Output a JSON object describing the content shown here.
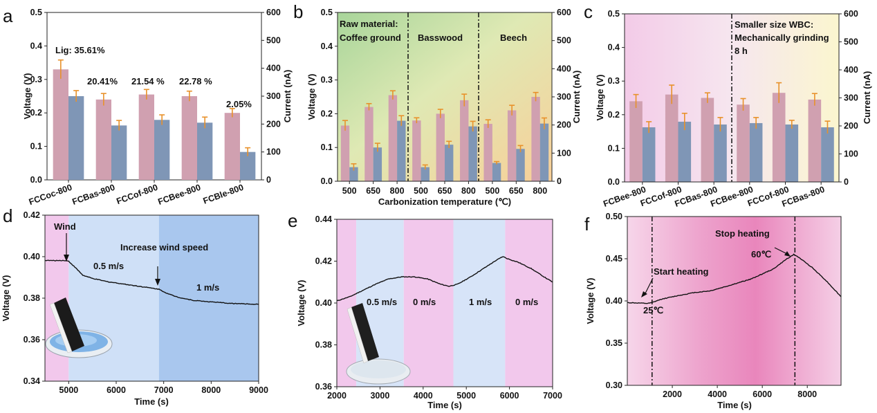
{
  "chart_data": [
    {
      "panel": "a",
      "type": "bar",
      "categories": [
        "FCCoc-800",
        "FCBas-800",
        "FCCof-800",
        "FCBee-800",
        "FCBle-800"
      ],
      "series": [
        {
          "name": "Voltage (V)",
          "axis": "left",
          "values": [
            0.33,
            0.24,
            0.255,
            0.25,
            0.2
          ],
          "errors": [
            0.028,
            0.018,
            0.015,
            0.015,
            0.013
          ],
          "color": "#d0a0b0"
        },
        {
          "name": "Current (nA)",
          "axis": "right",
          "values": [
            300,
            195,
            215,
            205,
            100
          ],
          "errors": [
            20,
            18,
            18,
            20,
            15
          ],
          "color": "#7f96b6"
        }
      ],
      "ylabel": "Voltage (V)",
      "y2label": "Current (nA)",
      "ylim": [
        0,
        0.5
      ],
      "y2lim": [
        0,
        600
      ],
      "yticks": [
        "0.0",
        "0.1",
        "0.2",
        "0.3",
        "0.4",
        "0.5"
      ],
      "y2ticks": [
        "0",
        "100",
        "200",
        "300",
        "400",
        "500",
        "600"
      ],
      "annotations": [
        "Lig: 35.61%",
        "20.41%",
        "21.54 %",
        "22.78 %",
        "2.05%"
      ]
    },
    {
      "panel": "b",
      "type": "bar",
      "categories": [
        "500",
        "650",
        "800",
        "500",
        "650",
        "800",
        "500",
        "650",
        "800"
      ],
      "series": [
        {
          "name": "Voltage (V)",
          "axis": "left",
          "values": [
            0.165,
            0.22,
            0.255,
            0.18,
            0.2,
            0.24,
            0.17,
            0.21,
            0.25
          ],
          "errors": [
            0.015,
            0.01,
            0.013,
            0.008,
            0.013,
            0.018,
            0.012,
            0.015,
            0.013
          ],
          "color": "#d0a0b0"
        },
        {
          "name": "Current (nA)",
          "axis": "right",
          "values": [
            50,
            120,
            215,
            50,
            130,
            195,
            65,
            115,
            205
          ],
          "errors": [
            12,
            15,
            18,
            8,
            12,
            18,
            5,
            12,
            20
          ],
          "color": "#7f96b6"
        }
      ],
      "groups": [
        "Raw material:",
        "Coffee ground",
        "Basswood",
        "Beech"
      ],
      "xlabel": "Carbonization temperature (℃)",
      "ylabel": "Voltage (V)",
      "y2label": "Current (nA)",
      "ylim": [
        0,
        0.5
      ],
      "y2lim": [
        0,
        600
      ],
      "yticks": [
        "0.0",
        "0.1",
        "0.2",
        "0.3",
        "0.4",
        "0.5"
      ],
      "y2ticks": [
        "0",
        "100",
        "200",
        "300",
        "400",
        "500",
        "600"
      ]
    },
    {
      "panel": "c",
      "type": "bar",
      "categories": [
        "FCBee-800",
        "FCCof-800",
        "FCBas-800",
        "FCBee-800",
        "FCCof-800",
        "FCBas-800"
      ],
      "series": [
        {
          "name": "Voltage (V)",
          "axis": "left",
          "values": [
            0.24,
            0.26,
            0.25,
            0.23,
            0.265,
            0.245
          ],
          "errors": [
            0.02,
            0.028,
            0.015,
            0.018,
            0.03,
            0.018
          ],
          "color": "#d0a0b0"
        },
        {
          "name": "Current (nA)",
          "axis": "right",
          "values": [
            195,
            215,
            205,
            210,
            205,
            195
          ],
          "errors": [
            20,
            30,
            25,
            20,
            15,
            22
          ],
          "color": "#7f96b6"
        }
      ],
      "annotation_lines": [
        "Smaller size WBC:",
        "Mechanically grinding",
        "8 h"
      ],
      "ylabel": "Voltage (V)",
      "y2label": "Current (nA)",
      "ylim": [
        0,
        0.5
      ],
      "y2lim": [
        0,
        600
      ],
      "yticks": [
        "0.0",
        "0.1",
        "0.2",
        "0.3",
        "0.4",
        "0.5"
      ],
      "y2ticks": [
        "0",
        "100",
        "200",
        "300",
        "400",
        "500",
        "600"
      ]
    },
    {
      "panel": "d",
      "type": "line",
      "xlabel": "Time (s)",
      "ylabel": "Voltage (V)",
      "xlim": [
        4500,
        9000
      ],
      "ylim": [
        0.34,
        0.42
      ],
      "xticks": [
        "5000",
        "6000",
        "7000",
        "8000",
        "9000"
      ],
      "yticks": [
        "0.34",
        "0.36",
        "0.38",
        "0.40",
        "0.42"
      ],
      "x": [
        4500,
        4700,
        4900,
        5000,
        5150,
        5300,
        5500,
        5800,
        6100,
        6400,
        6700,
        6900,
        7100,
        7300,
        7600,
        8000,
        8400,
        8800,
        9000
      ],
      "y": [
        0.3982,
        0.3981,
        0.3982,
        0.3978,
        0.3945,
        0.391,
        0.3895,
        0.388,
        0.387,
        0.386,
        0.385,
        0.3843,
        0.382,
        0.3805,
        0.379,
        0.3782,
        0.3775,
        0.3772,
        0.377
      ],
      "regions": [
        {
          "from": 4500,
          "to": 5000,
          "color": "#f2c8ec"
        },
        {
          "from": 5000,
          "to": 6900,
          "color": "#cfe0f7"
        },
        {
          "from": 6900,
          "to": 9000,
          "color": "#a9c7ee"
        }
      ],
      "annotations": [
        "Wind",
        "0.5 m/s",
        "Increase wind speed",
        "1 m/s"
      ]
    },
    {
      "panel": "e",
      "type": "line",
      "xlabel": "Time (s)",
      "ylabel": "Voltage (V)",
      "xlim": [
        2000,
        7000
      ],
      "ylim": [
        0.36,
        0.44
      ],
      "xticks": [
        "2000",
        "3000",
        "4000",
        "5000",
        "6000",
        "7000"
      ],
      "yticks": [
        "0.36",
        "0.38",
        "0.40",
        "0.42",
        "0.44"
      ],
      "x": [
        2000,
        2300,
        2600,
        2900,
        3200,
        3500,
        3800,
        4100,
        4400,
        4600,
        4800,
        5100,
        5400,
        5700,
        5850,
        5950,
        6200,
        6500,
        6800,
        7000
      ],
      "y": [
        0.401,
        0.403,
        0.406,
        0.409,
        0.4115,
        0.4125,
        0.4125,
        0.4115,
        0.409,
        0.408,
        0.409,
        0.4125,
        0.4165,
        0.4205,
        0.4222,
        0.4212,
        0.4195,
        0.4165,
        0.4125,
        0.41
      ],
      "regions": [
        {
          "from": 2000,
          "to": 2450,
          "color": "#f2c8ec"
        },
        {
          "from": 2450,
          "to": 3550,
          "color": "#d7e4f8"
        },
        {
          "from": 3550,
          "to": 4700,
          "color": "#f2c8ec"
        },
        {
          "from": 4700,
          "to": 5900,
          "color": "#d7e4f8"
        },
        {
          "from": 5900,
          "to": 7000,
          "color": "#f2c8ec"
        }
      ],
      "annotations": [
        "0.5 m/s",
        "0 m/s",
        "1 m/s",
        "0 m/s"
      ]
    },
    {
      "panel": "f",
      "type": "line",
      "xlabel": "Time (s)",
      "ylabel": "Voltage (V)",
      "xlim": [
        0,
        9500
      ],
      "ylim": [
        0.3,
        0.5
      ],
      "xticks": [
        "2000",
        "4000",
        "6000",
        "8000"
      ],
      "yticks": [
        "0.30",
        "0.35",
        "0.40",
        "0.45",
        "0.50"
      ],
      "x": [
        0,
        500,
        900,
        1100,
        1500,
        2200,
        3000,
        3700,
        4500,
        5500,
        6500,
        7100,
        7400,
        7600,
        8200,
        8800,
        9500
      ],
      "y": [
        0.398,
        0.3975,
        0.397,
        0.398,
        0.402,
        0.406,
        0.41,
        0.412,
        0.418,
        0.426,
        0.438,
        0.45,
        0.455,
        0.452,
        0.44,
        0.425,
        0.405
      ],
      "vlines": [
        1100,
        7450
      ],
      "annotations": [
        "Start heating",
        "25℃",
        "Stop heating",
        "60℃"
      ]
    }
  ],
  "colors": {
    "voltage_bar": "#d0a0b0",
    "current_bar": "#7f96b6",
    "error_bar": "#e8912a",
    "line": "#111111"
  }
}
